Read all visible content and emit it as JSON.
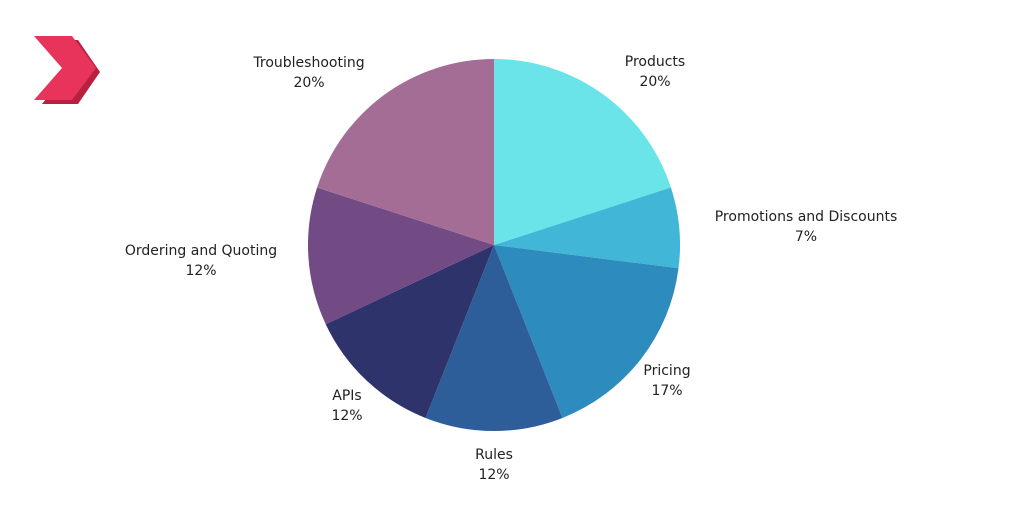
{
  "logo": {
    "name": "double-chevron-logo",
    "colors": {
      "front": "#e8345a",
      "shade": "#b8203f"
    }
  },
  "chart_data": {
    "type": "pie",
    "title": "",
    "start_angle_deg": 0,
    "direction": "clockwise",
    "slices": [
      {
        "label": "Products",
        "percent_text": "20%",
        "value": 20,
        "color": "#6ae4e8"
      },
      {
        "label": "Promotions and Discounts",
        "percent_text": "7%",
        "value": 7,
        "color": "#41b6d6"
      },
      {
        "label": "Pricing",
        "percent_text": "17%",
        "value": 17,
        "color": "#2e8bbd"
      },
      {
        "label": "Rules",
        "percent_text": "12%",
        "value": 12,
        "color": "#2e5e9a"
      },
      {
        "label": "APIs",
        "percent_text": "12%",
        "value": 12,
        "color": "#2f336b"
      },
      {
        "label": "Ordering and Quoting",
        "percent_text": "12%",
        "value": 12,
        "color": "#724b85"
      },
      {
        "label": "Troubleshooting",
        "percent_text": "20%",
        "value": 20,
        "color": "#a46d95"
      }
    ]
  }
}
